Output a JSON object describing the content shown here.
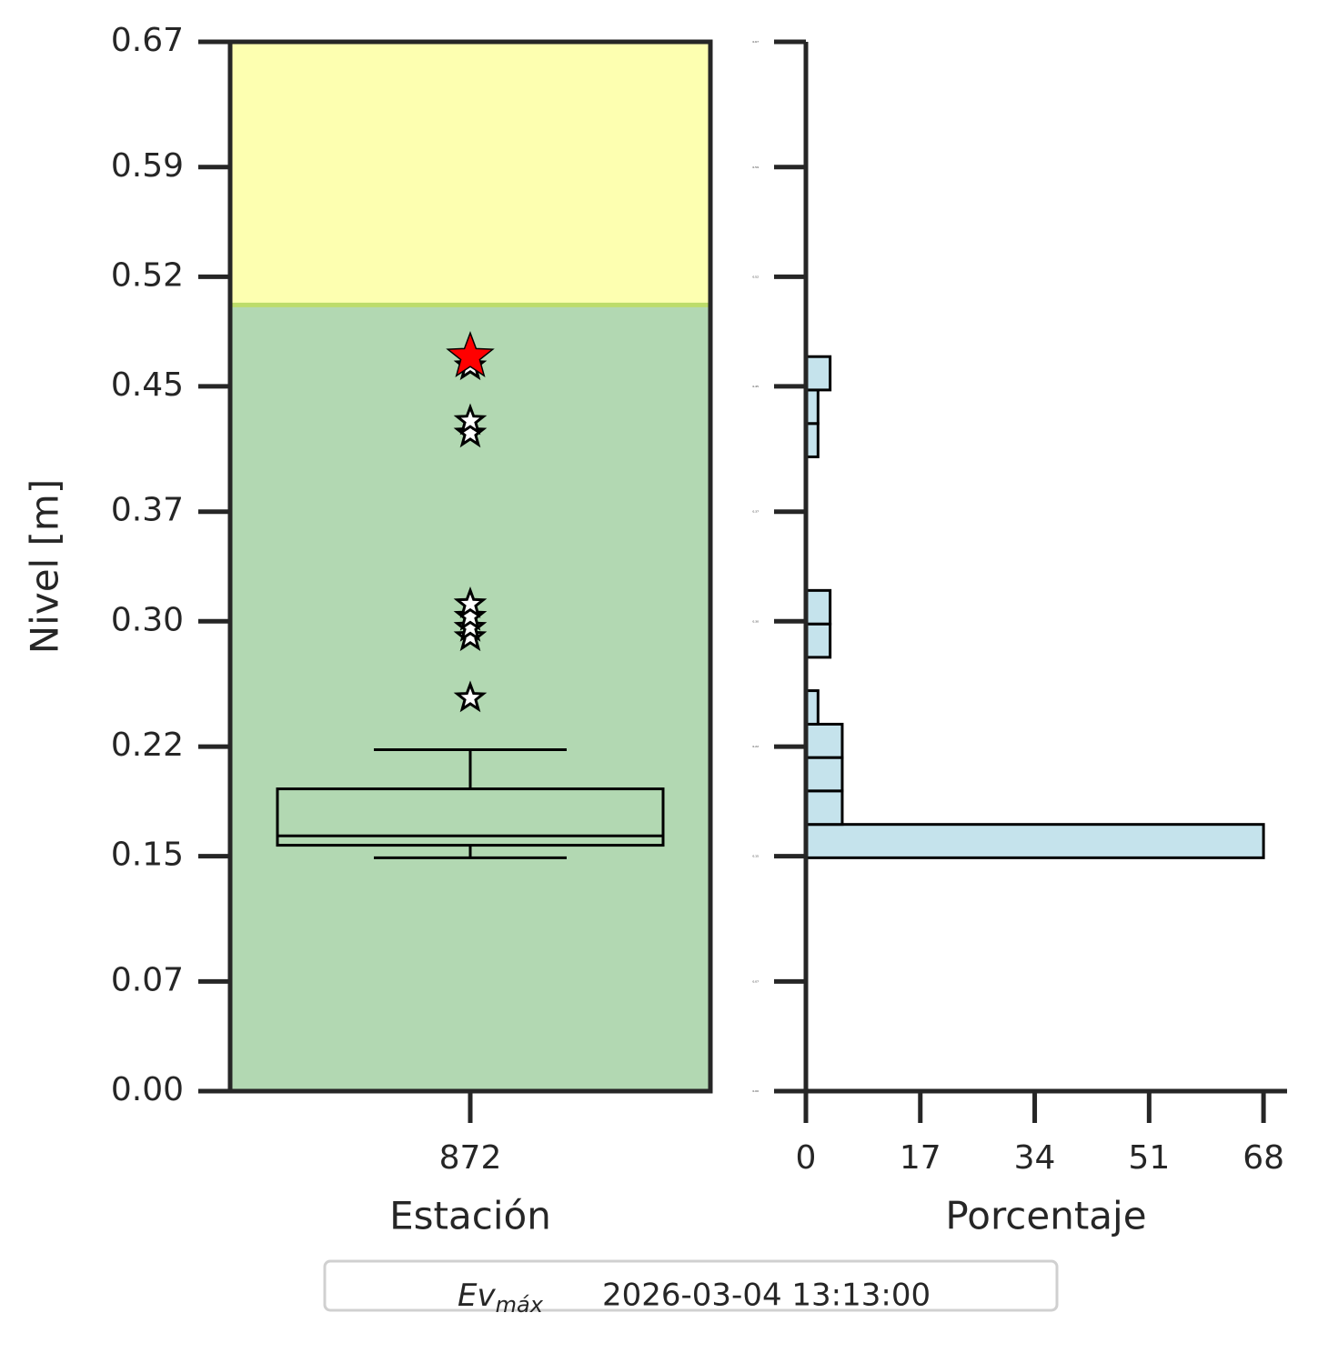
{
  "chart_data": [
    {
      "type": "box",
      "categories": [
        "872"
      ],
      "xlabel": "Estación",
      "ylabel": "Nivel [m]",
      "ylim": [
        0,
        0.67
      ],
      "yticks": [
        {
          "value": 0,
          "label": "0.00"
        },
        0.07,
        0.15,
        0.22,
        {
          "value": 0.3,
          "label": "0.30"
        },
        0.37,
        0.45,
        0.52,
        0.59,
        0.67
      ],
      "bands": [
        {
          "from": 0,
          "to": 0.502,
          "color": "#b2d8b2"
        },
        {
          "from": 0.502,
          "to": 0.67,
          "color": "#fdffb0"
        }
      ],
      "threshold_color": "#bcdc6a",
      "box": {
        "whislo": 0.149,
        "q1": 0.157,
        "median": 0.163,
        "q3": 0.193,
        "whishi": 0.218,
        "fliers": [
          0.251,
          0.29,
          0.296,
          0.303,
          0.311,
          0.42,
          0.428,
          0.463
        ]
      },
      "highlight": {
        "label": "Ev",
        "label_sub": "máx",
        "date": "2026-03-04 13:13:00",
        "value": 0.469,
        "color": "#ff0000"
      }
    },
    {
      "type": "histogram",
      "orientation": "horizontal",
      "xlabel": "Porcentaje",
      "bins": [
        0.149,
        0.1703,
        0.1917,
        0.213,
        0.2343,
        0.2557,
        0.277,
        0.2983,
        0.3197,
        0.341,
        0.3623,
        0.3837,
        0.405,
        0.4263,
        0.4477,
        0.469
      ],
      "values": [
        68,
        5.4,
        5.4,
        5.4,
        1.8,
        0,
        3.6,
        3.6,
        0,
        0,
        0,
        0,
        1.8,
        1.8,
        3.6
      ],
      "color": "#c5e3ec",
      "xlim": [
        0,
        71.5
      ],
      "xticks": [
        0,
        17,
        34,
        51,
        68
      ],
      "ylim": [
        0,
        0.67
      ],
      "yticks": [
        {
          "value": 0,
          "label": "0.00"
        },
        0.07,
        0.15,
        0.22,
        {
          "value": 0.3,
          "label": "0.30"
        },
        0.37,
        0.45,
        0.52,
        0.59,
        0.67
      ]
    }
  ]
}
